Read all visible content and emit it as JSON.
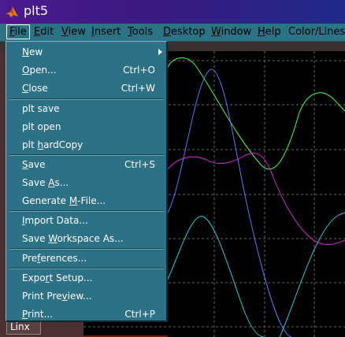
{
  "window": {
    "title": "plt5"
  },
  "menubar": {
    "items": [
      {
        "label": "File",
        "ul": "F",
        "rest": "ile"
      },
      {
        "label": "Edit",
        "ul": "E",
        "rest": "dit"
      },
      {
        "label": "View",
        "ul": "V",
        "rest": "iew"
      },
      {
        "label": "Insert",
        "ul": "I",
        "rest": "nsert"
      },
      {
        "label": "Tools",
        "ul": "T",
        "rest": "ools"
      },
      {
        "label": "Desktop",
        "ul": "D",
        "rest": "esktop"
      },
      {
        "label": "Window",
        "ul": "W",
        "rest": "indow"
      },
      {
        "label": "Help",
        "ul": "H",
        "rest": "elp"
      },
      {
        "label": "Color/Lines",
        "ul": "",
        "rest": "Color/Lines"
      }
    ]
  },
  "file_menu": {
    "new": {
      "ul": "N",
      "rest": "ew"
    },
    "open": {
      "ul": "O",
      "rest": "pen...",
      "shortcut": "Ctrl+O"
    },
    "close": {
      "ul": "C",
      "rest": "lose",
      "shortcut": "Ctrl+W"
    },
    "plt_save": "plt  save",
    "plt_open": "plt  open",
    "plt_hardcopy": {
      "pre": "plt  ",
      "ul": "h",
      "rest": "ardCopy"
    },
    "save": {
      "ul": "S",
      "rest": "ave",
      "shortcut": "Ctrl+S"
    },
    "save_as": {
      "pre": "Save ",
      "ul": "A",
      "rest": "s..."
    },
    "generate": {
      "pre": "Generate ",
      "ul": "M",
      "rest": "-File..."
    },
    "import": {
      "ul": "I",
      "rest": "mport Data..."
    },
    "save_ws": {
      "pre": "Save ",
      "ul": "W",
      "rest": "orkspace As..."
    },
    "prefs": {
      "pre": "Pre",
      "ul": "f",
      "rest": "erences..."
    },
    "export": {
      "pre": "Expo",
      "ul": "r",
      "rest": "t Setup..."
    },
    "preview": {
      "pre": "Print Pre",
      "ul": "v",
      "rest": "iew..."
    },
    "print": {
      "ul": "P",
      "rest": "rint...",
      "shortcut": "Ctrl+P"
    }
  },
  "panel": {
    "linx_label": "Linx"
  },
  "colors": {
    "menu_bg": "#2c7185",
    "menubar_bg": "#2a7486",
    "title_bg": "#4a1a8e",
    "green": "#44ff44",
    "blue": "#5577ff",
    "magenta": "#dd22dd",
    "cyan": "#22ccdd"
  }
}
